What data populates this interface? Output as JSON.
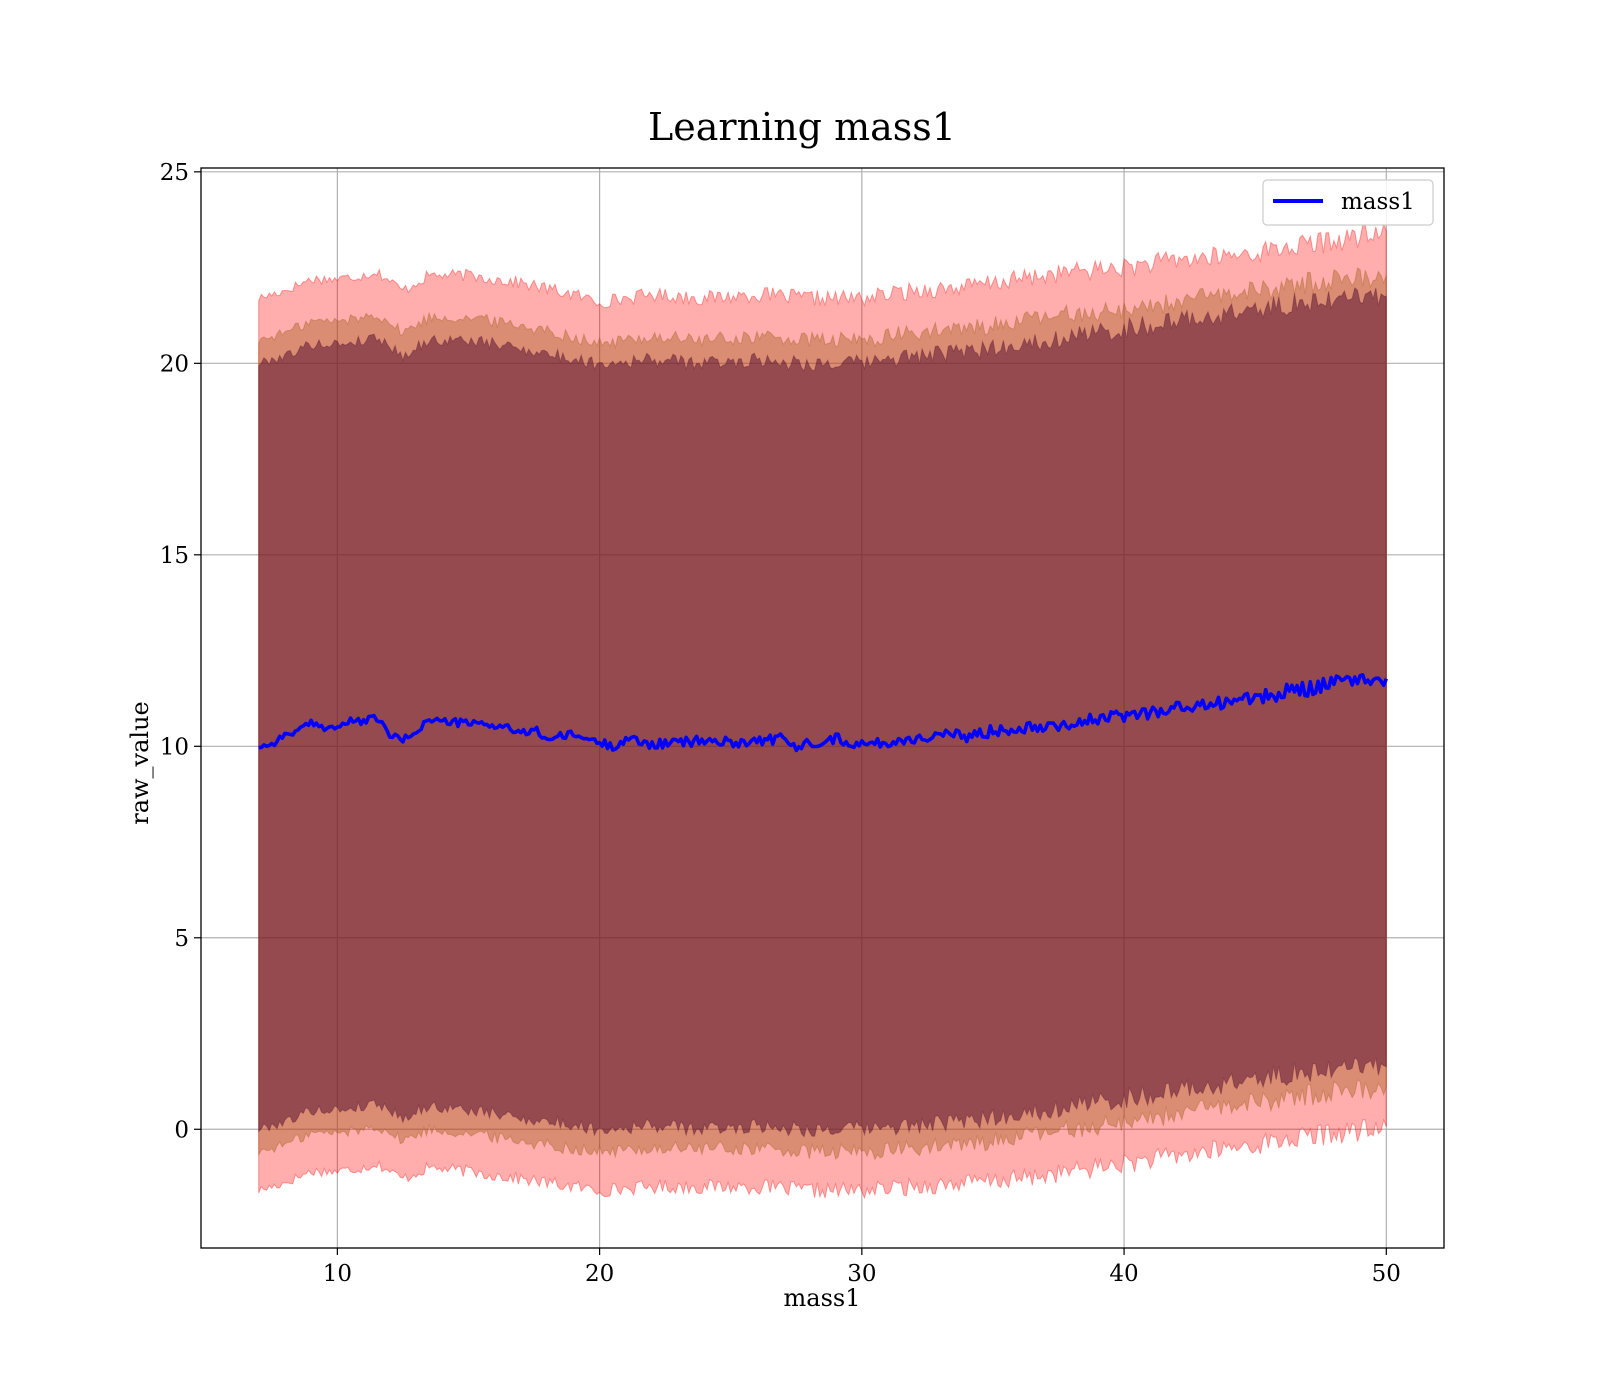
{
  "chart_data": {
    "type": "area",
    "title": "Learning mass1",
    "xlabel": "mass1",
    "ylabel": "raw_value",
    "xlim": [
      4.8,
      52.2
    ],
    "ylim": [
      -3.1,
      25.1
    ],
    "x_ticks": [
      10,
      20,
      30,
      40,
      50
    ],
    "y_ticks": [
      0,
      5,
      10,
      15,
      20,
      25
    ],
    "grid": true,
    "legend": {
      "position": "top-right",
      "entries": [
        "mass1"
      ]
    },
    "x_range": [
      7.0,
      50.0
    ],
    "series": [
      {
        "name": "mass1",
        "kind": "line",
        "color": "#0000ff",
        "x": [
          7,
          7.5,
          8,
          8.5,
          9,
          9.5,
          10,
          10.5,
          11,
          11.5,
          12,
          12.5,
          13,
          13.5,
          14,
          15,
          16,
          16.5,
          17,
          17.5,
          18,
          19,
          20,
          20.5,
          21,
          22,
          23,
          24,
          25,
          26,
          27,
          27.5,
          28,
          29,
          30,
          31,
          32,
          33,
          34,
          34.5,
          35,
          36,
          37,
          38,
          39,
          40,
          41,
          42,
          43,
          44,
          45,
          46,
          46.5,
          47,
          47.5,
          48,
          49,
          49.5,
          50
        ],
        "y": [
          10.0,
          10.05,
          10.3,
          10.4,
          10.6,
          10.5,
          10.5,
          10.65,
          10.65,
          10.75,
          10.3,
          10.15,
          10.4,
          10.7,
          10.65,
          10.6,
          10.55,
          10.5,
          10.3,
          10.45,
          10.2,
          10.3,
          10.1,
          10.0,
          10.2,
          10.05,
          10.1,
          10.15,
          10.1,
          10.15,
          10.2,
          9.95,
          10.1,
          10.2,
          10.05,
          10.1,
          10.2,
          10.3,
          10.25,
          10.35,
          10.4,
          10.5,
          10.55,
          10.6,
          10.7,
          10.8,
          10.9,
          11.0,
          11.05,
          11.2,
          11.25,
          11.35,
          11.55,
          11.5,
          11.6,
          11.65,
          11.75,
          11.7,
          11.8
        ]
      },
      {
        "name": "",
        "kind": "band",
        "color": "#ff0000",
        "opacity": 0.32,
        "x": [
          7,
          8,
          9,
          10,
          11,
          11.5,
          12.5,
          13.5,
          15,
          17,
          19,
          20,
          22,
          24,
          26,
          28,
          30,
          32,
          34,
          36,
          38,
          40,
          42,
          44,
          46,
          48,
          50
        ],
        "upper": [
          21.7,
          21.9,
          22.2,
          22.2,
          22.3,
          22.4,
          21.9,
          22.3,
          22.3,
          22.1,
          21.8,
          21.6,
          21.8,
          21.7,
          21.8,
          21.7,
          21.7,
          21.9,
          22.0,
          22.2,
          22.4,
          22.5,
          22.7,
          22.8,
          23.0,
          23.2,
          23.4
        ],
        "lower": [
          -1.6,
          -1.4,
          -1.1,
          -1.1,
          -1.0,
          -0.9,
          -1.3,
          -1.0,
          -1.1,
          -1.3,
          -1.5,
          -1.6,
          -1.5,
          -1.5,
          -1.5,
          -1.6,
          -1.6,
          -1.5,
          -1.4,
          -1.3,
          -1.1,
          -0.9,
          -0.7,
          -0.5,
          -0.3,
          -0.1,
          0.0
        ]
      },
      {
        "name": "",
        "kind": "band",
        "color": "#a05a14",
        "opacity": 0.38,
        "x": [
          7,
          8,
          9,
          10,
          11,
          11.5,
          12.5,
          13.5,
          15,
          17,
          19,
          20,
          22,
          24,
          26,
          28,
          30,
          32,
          34,
          36,
          38,
          40,
          42,
          44,
          46,
          48,
          50
        ],
        "upper": [
          20.6,
          20.8,
          21.1,
          21.1,
          21.2,
          21.3,
          20.8,
          21.2,
          21.2,
          21.0,
          20.7,
          20.5,
          20.7,
          20.6,
          20.7,
          20.6,
          20.6,
          20.8,
          20.9,
          21.1,
          21.3,
          21.4,
          21.6,
          21.8,
          22.0,
          22.2,
          22.3
        ],
        "lower": [
          -0.6,
          -0.4,
          -0.1,
          -0.1,
          0.0,
          0.1,
          -0.3,
          0.0,
          -0.1,
          -0.3,
          -0.5,
          -0.6,
          -0.5,
          -0.5,
          -0.5,
          -0.6,
          -0.6,
          -0.5,
          -0.4,
          -0.2,
          0.0,
          0.2,
          0.4,
          0.6,
          0.8,
          1.0,
          1.1
        ]
      },
      {
        "name": "",
        "kind": "band",
        "color": "#5a1432",
        "opacity": 0.55,
        "x": [
          7,
          8,
          9,
          10,
          11,
          11.5,
          12.5,
          13.5,
          15,
          17,
          19,
          20,
          22,
          24,
          26,
          28,
          30,
          32,
          34,
          36,
          38,
          40,
          42,
          44,
          46,
          48,
          50
        ],
        "upper": [
          20.0,
          20.2,
          20.5,
          20.5,
          20.6,
          20.7,
          20.2,
          20.6,
          20.6,
          20.4,
          20.1,
          20.0,
          20.1,
          20.0,
          20.1,
          20.0,
          20.0,
          20.2,
          20.3,
          20.5,
          20.7,
          20.9,
          21.1,
          21.3,
          21.5,
          21.7,
          21.8
        ],
        "lower": [
          0.0,
          0.2,
          0.5,
          0.5,
          0.6,
          0.7,
          0.3,
          0.6,
          0.5,
          0.3,
          0.1,
          0.0,
          0.1,
          0.0,
          0.1,
          0.0,
          0.0,
          0.1,
          0.2,
          0.4,
          0.6,
          0.8,
          1.0,
          1.2,
          1.4,
          1.6,
          1.7
        ]
      }
    ]
  }
}
